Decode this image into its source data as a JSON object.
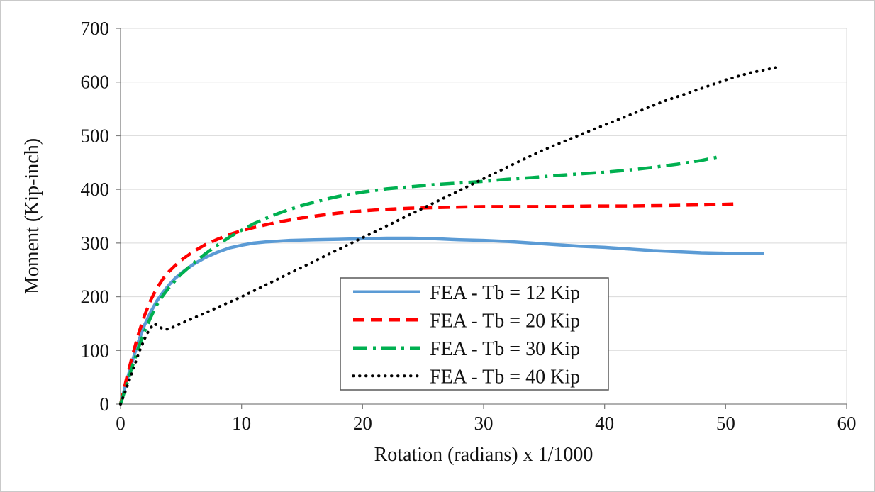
{
  "chart_data": {
    "type": "line",
    "title": "",
    "xlabel": "Rotation (radians) x 1/1000",
    "ylabel": "Moment (Kip-inch)",
    "xlim": [
      0,
      60
    ],
    "ylim": [
      0,
      700
    ],
    "xticks": [
      0,
      10,
      20,
      30,
      40,
      50,
      60
    ],
    "yticks": [
      0,
      100,
      200,
      300,
      400,
      500,
      600,
      700
    ],
    "grid": "horizontal",
    "legend_position": "inside-lower-center",
    "colors": {
      "gridline": "#d9d9d9",
      "axis_line": "#808080",
      "plot_border": "#d9d9d9",
      "legend_border": "#595959",
      "text": "#111111"
    },
    "series": [
      {
        "name": "FEA - Tb = 12 Kip",
        "color": "#5B9BD5",
        "style": "solid",
        "points": [
          [
            0,
            0
          ],
          [
            0.5,
            42
          ],
          [
            1,
            82
          ],
          [
            1.5,
            118
          ],
          [
            2,
            148
          ],
          [
            2.5,
            172
          ],
          [
            3,
            192
          ],
          [
            3.5,
            208
          ],
          [
            4,
            222
          ],
          [
            4.5,
            234
          ],
          [
            5,
            244
          ],
          [
            6,
            260
          ],
          [
            7,
            273
          ],
          [
            8,
            283
          ],
          [
            9,
            291
          ],
          [
            10,
            296
          ],
          [
            11,
            300
          ],
          [
            12,
            302
          ],
          [
            14,
            305
          ],
          [
            16,
            306
          ],
          [
            18,
            307
          ],
          [
            20,
            308
          ],
          [
            22,
            309
          ],
          [
            24,
            309
          ],
          [
            26,
            308
          ],
          [
            28,
            306
          ],
          [
            30,
            305
          ],
          [
            32,
            303
          ],
          [
            34,
            300
          ],
          [
            36,
            297
          ],
          [
            38,
            294
          ],
          [
            40,
            292
          ],
          [
            42,
            289
          ],
          [
            44,
            286
          ],
          [
            46,
            284
          ],
          [
            48,
            282
          ],
          [
            50,
            281
          ],
          [
            51.5,
            281
          ],
          [
            53.2,
            281
          ]
        ]
      },
      {
        "name": "FEA - Tb = 20 Kip",
        "color": "#FF0000",
        "style": "dashed",
        "points": [
          [
            0,
            0
          ],
          [
            0.5,
            48
          ],
          [
            1,
            92
          ],
          [
            1.5,
            132
          ],
          [
            2,
            166
          ],
          [
            2.5,
            194
          ],
          [
            3,
            216
          ],
          [
            3.5,
            233
          ],
          [
            4,
            247
          ],
          [
            4.5,
            258
          ],
          [
            5,
            268
          ],
          [
            6,
            284
          ],
          [
            7,
            297
          ],
          [
            8,
            307
          ],
          [
            9,
            316
          ],
          [
            10,
            323
          ],
          [
            11,
            329
          ],
          [
            12,
            334
          ],
          [
            13,
            339
          ],
          [
            14,
            343
          ],
          [
            15,
            347
          ],
          [
            16,
            350
          ],
          [
            17,
            353
          ],
          [
            18,
            356
          ],
          [
            19,
            358
          ],
          [
            20,
            360
          ],
          [
            22,
            363
          ],
          [
            24,
            365
          ],
          [
            26,
            366
          ],
          [
            28,
            367
          ],
          [
            30,
            368
          ],
          [
            33,
            368
          ],
          [
            36,
            368
          ],
          [
            39,
            369
          ],
          [
            42,
            369
          ],
          [
            45,
            370
          ],
          [
            48,
            371
          ],
          [
            51,
            373
          ]
        ]
      },
      {
        "name": "FEA - Tb = 30 Kip",
        "color": "#00B050",
        "style": "dashdot",
        "points": [
          [
            0,
            0
          ],
          [
            0.5,
            36
          ],
          [
            1,
            72
          ],
          [
            1.5,
            106
          ],
          [
            2,
            136
          ],
          [
            2.5,
            162
          ],
          [
            3,
            185
          ],
          [
            3.5,
            202
          ],
          [
            4,
            217
          ],
          [
            5,
            242
          ],
          [
            6,
            262
          ],
          [
            7,
            280
          ],
          [
            8,
            296
          ],
          [
            9,
            311
          ],
          [
            10,
            324
          ],
          [
            11,
            336
          ],
          [
            12,
            346
          ],
          [
            13,
            355
          ],
          [
            14,
            363
          ],
          [
            15,
            370
          ],
          [
            16,
            376
          ],
          [
            17,
            382
          ],
          [
            18,
            387
          ],
          [
            19,
            391
          ],
          [
            20,
            395
          ],
          [
            21,
            398
          ],
          [
            22,
            401
          ],
          [
            24,
            405
          ],
          [
            26,
            409
          ],
          [
            28,
            412
          ],
          [
            30,
            415
          ],
          [
            32,
            419
          ],
          [
            34,
            422
          ],
          [
            36,
            426
          ],
          [
            38,
            429
          ],
          [
            40,
            432
          ],
          [
            42,
            436
          ],
          [
            44,
            441
          ],
          [
            46,
            447
          ],
          [
            48,
            454
          ],
          [
            49.5,
            461
          ]
        ]
      },
      {
        "name": "FEA - Tb = 40 Kip",
        "color": "#000000",
        "style": "dotted",
        "points": [
          [
            0,
            0
          ],
          [
            0.5,
            30
          ],
          [
            1,
            62
          ],
          [
            1.5,
            95
          ],
          [
            2,
            122
          ],
          [
            2.4,
            140
          ],
          [
            2.8,
            150
          ],
          [
            3.2,
            144
          ],
          [
            3.6,
            139
          ],
          [
            4,
            140
          ],
          [
            5,
            150
          ],
          [
            6,
            160
          ],
          [
            7,
            170
          ],
          [
            8,
            180
          ],
          [
            10,
            200
          ],
          [
            12,
            222
          ],
          [
            15,
            255
          ],
          [
            18,
            288
          ],
          [
            20,
            310
          ],
          [
            22,
            332
          ],
          [
            25,
            365
          ],
          [
            28,
            398
          ],
          [
            30,
            420
          ],
          [
            32,
            442
          ],
          [
            35,
            474
          ],
          [
            38,
            502
          ],
          [
            40,
            520
          ],
          [
            42,
            538
          ],
          [
            45,
            565
          ],
          [
            48,
            588
          ],
          [
            50,
            604
          ],
          [
            52,
            617
          ],
          [
            54.4,
            628
          ]
        ]
      }
    ]
  }
}
